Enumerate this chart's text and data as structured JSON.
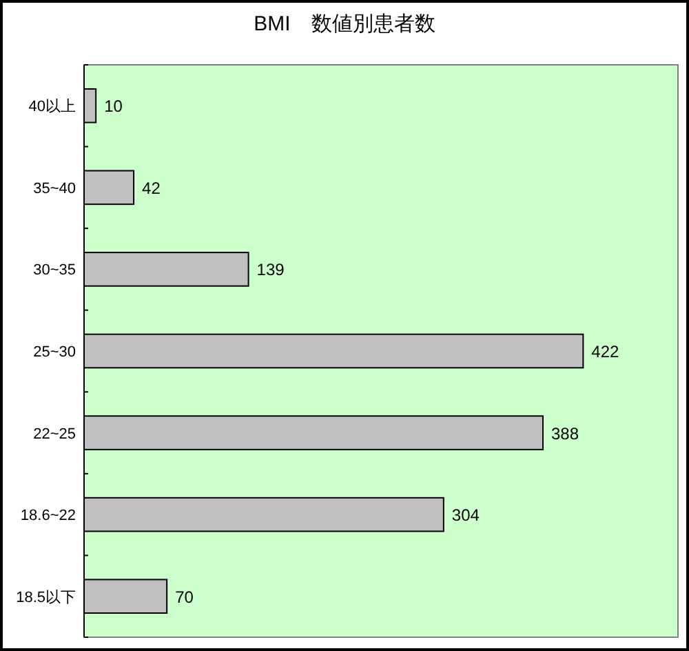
{
  "chart_data": {
    "type": "bar",
    "orientation": "horizontal",
    "title": "BMI　数値別患者数",
    "categories": [
      "40以上",
      "35~40",
      "30~35",
      "25~30",
      "22~25",
      "18.6~22",
      "18.5以下"
    ],
    "values": [
      10,
      42,
      139,
      422,
      388,
      304,
      70
    ],
    "color": "#c0c0c0",
    "data_labels": true
  }
}
